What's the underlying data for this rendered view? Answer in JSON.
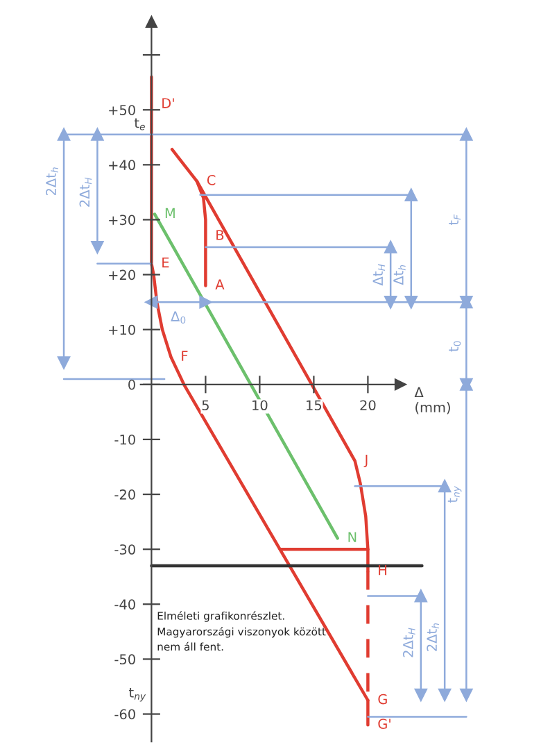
{
  "chart_data": {
    "type": "line",
    "xlabel": "Δ\n(mm)",
    "xlim": [
      -14,
      36
    ],
    "ylim": [
      -66,
      70
    ],
    "xticks": [
      5,
      10,
      15,
      20
    ],
    "yticks": [
      {
        "value": 60,
        "label": null
      },
      {
        "value": 50,
        "label": "+50"
      },
      {
        "value": 40,
        "label": "+40"
      },
      {
        "value": 30,
        "label": "+30"
      },
      {
        "value": 20,
        "label": "+20"
      },
      {
        "value": 10,
        "label": "+10"
      },
      {
        "value": 0,
        "label": "0"
      },
      {
        "value": -10,
        "label": "-10"
      },
      {
        "value": -20,
        "label": "-20"
      },
      {
        "value": -30,
        "label": "-30"
      },
      {
        "value": -40,
        "label": "-40"
      },
      {
        "value": -50,
        "label": "-50"
      },
      {
        "value": -60,
        "label": "-60"
      }
    ],
    "grid": false,
    "series": [
      {
        "color": "#e03c31",
        "x": [
          0,
          0,
          0,
          0.2,
          0.5,
          1,
          1.8,
          3,
          20
        ],
        "values": [
          56,
          51,
          22,
          20,
          15,
          10,
          5,
          0,
          -57.5
        ],
        "value_labels": [
          null,
          "D'",
          "E",
          null,
          null,
          null,
          "F",
          null,
          "G"
        ]
      },
      {
        "color": "#e03c31",
        "x": [
          1.9,
          4.2,
          18.8,
          19.3,
          19.8,
          20,
          20
        ],
        "values": [
          42.8,
          37,
          -13.9,
          -18,
          -24,
          -30,
          -34
        ],
        "value_labels": [
          null,
          "C",
          "J",
          null,
          null,
          null,
          "H"
        ]
      },
      {
        "color": "#e03c31",
        "x": [
          4.2,
          4.8,
          5,
          5,
          5
        ],
        "values": [
          37,
          34,
          30,
          27,
          18
        ],
        "value_labels": [
          null,
          null,
          null,
          "B",
          "A"
        ]
      },
      {
        "color": "#e03c31",
        "x": [
          11.9,
          20
        ],
        "values": [
          -30,
          -30
        ]
      },
      {
        "color": "#e03c31",
        "x": [
          20,
          20
        ],
        "values": [
          -34,
          -57.5
        ],
        "line_style": "dashed"
      },
      {
        "color": "#e03c31",
        "x": [
          20,
          20
        ],
        "values": [
          -57.5,
          -62
        ],
        "value_labels": [
          null,
          "G'"
        ]
      },
      {
        "color": "#6cc06c",
        "x": [
          0.3,
          17.2
        ],
        "values": [
          31,
          -28
        ],
        "value_labels": [
          "M",
          "N"
        ]
      },
      {
        "color": "#333333",
        "x": [
          0,
          25
        ],
        "values": [
          -33,
          -33
        ]
      },
      {
        "color": "#8eaadb",
        "marker": "triangle",
        "x": [
          -8.1,
          -8.1
        ],
        "values": [
          45.5,
          4
        ]
      },
      {
        "color": "#8eaadb",
        "marker": "triangle",
        "x": [
          -5,
          -5
        ],
        "values": [
          45.5,
          25
        ]
      },
      {
        "color": "#8eaadb",
        "marker": "triangle",
        "x": [
          24,
          24
        ],
        "values": [
          34.5,
          15
        ]
      },
      {
        "color": "#8eaadb",
        "marker": "triangle",
        "x": [
          22.1,
          22.1
        ],
        "values": [
          25,
          15
        ]
      },
      {
        "color": "#8eaadb",
        "marker": "triangle",
        "x": [
          29.1,
          29.1
        ],
        "values": [
          45.5,
          15
        ]
      },
      {
        "color": "#8eaadb",
        "marker": "triangle",
        "x": [
          29.1,
          29.1
        ],
        "values": [
          15,
          0
        ]
      },
      {
        "color": "#8eaadb",
        "marker": "triangle",
        "x": [
          29.1,
          29.1
        ],
        "values": [
          0,
          -56.5
        ]
      },
      {
        "color": "#8eaadb",
        "marker": "triangle",
        "x": [
          27.1,
          27.1
        ],
        "values": [
          -18.5,
          -56.5
        ]
      },
      {
        "color": "#8eaadb",
        "marker": "triangle",
        "x": [
          24.9,
          24.9
        ],
        "values": [
          -38.5,
          -56.5
        ]
      },
      {
        "color": "#8eaadb",
        "marker": "triangle",
        "x": [
          0,
          5
        ],
        "values": [
          15,
          15
        ]
      },
      {
        "color": "#8eaadb",
        "x": [
          -8.1,
          29.1
        ],
        "values": [
          45.5,
          45.5
        ]
      },
      {
        "color": "#8eaadb",
        "x": [
          -8.1,
          1.2
        ],
        "values": [
          1,
          1
        ]
      },
      {
        "color": "#8eaadb",
        "x": [
          -5,
          0
        ],
        "values": [
          22,
          22
        ]
      },
      {
        "color": "#8eaadb",
        "x": [
          4.5,
          24
        ],
        "values": [
          34.5,
          34.5
        ]
      },
      {
        "color": "#8eaadb",
        "x": [
          5,
          22.1
        ],
        "values": [
          25,
          25
        ]
      },
      {
        "color": "#8eaadb",
        "x": [
          5,
          29.1
        ],
        "values": [
          15,
          15
        ]
      },
      {
        "color": "#8eaadb",
        "x": [
          18.8,
          27.1
        ],
        "values": [
          -18.5,
          -18.5
        ]
      },
      {
        "color": "#8eaadb",
        "x": [
          20,
          24.9
        ],
        "values": [
          -38.5,
          -38.5
        ]
      },
      {
        "color": "#8eaadb",
        "x": [
          20,
          29.1
        ],
        "values": [
          -60.5,
          -60.5
        ]
      }
    ],
    "annotations": [
      {
        "text": "2Δt$_{h}$",
        "x": -8.1,
        "y": 37
      },
      {
        "text": "2Δt$_{H}$",
        "x": -5,
        "y": 35
      },
      {
        "text": "Δt$_{h}$",
        "x": 24,
        "y": 20
      },
      {
        "text": "Δt$_{H}$",
        "x": 22.1,
        "y": 20
      },
      {
        "text": "t$_{F}$",
        "x": 29.1,
        "y": 30
      },
      {
        "text": "t$_{0}$",
        "x": 29.1,
        "y": 7
      },
      {
        "text": "t$_{ny}$",
        "x": 29.1,
        "y": -20
      },
      {
        "text": "2Δt$_{h}$",
        "x": 27.1,
        "y": -46
      },
      {
        "text": "2Δt$_{H}$",
        "x": 24.9,
        "y": -47
      },
      {
        "text": "Δ$_{0}$",
        "x": 2.5,
        "y": 15
      },
      {
        "text": "t$_{e}$",
        "x": 0,
        "y": 45.5
      },
      "t$_{ny}$",
      "Elméleti grafikonrészlet.\nMagyarországi viszonyok között\nnem áll fent."
    ]
  }
}
